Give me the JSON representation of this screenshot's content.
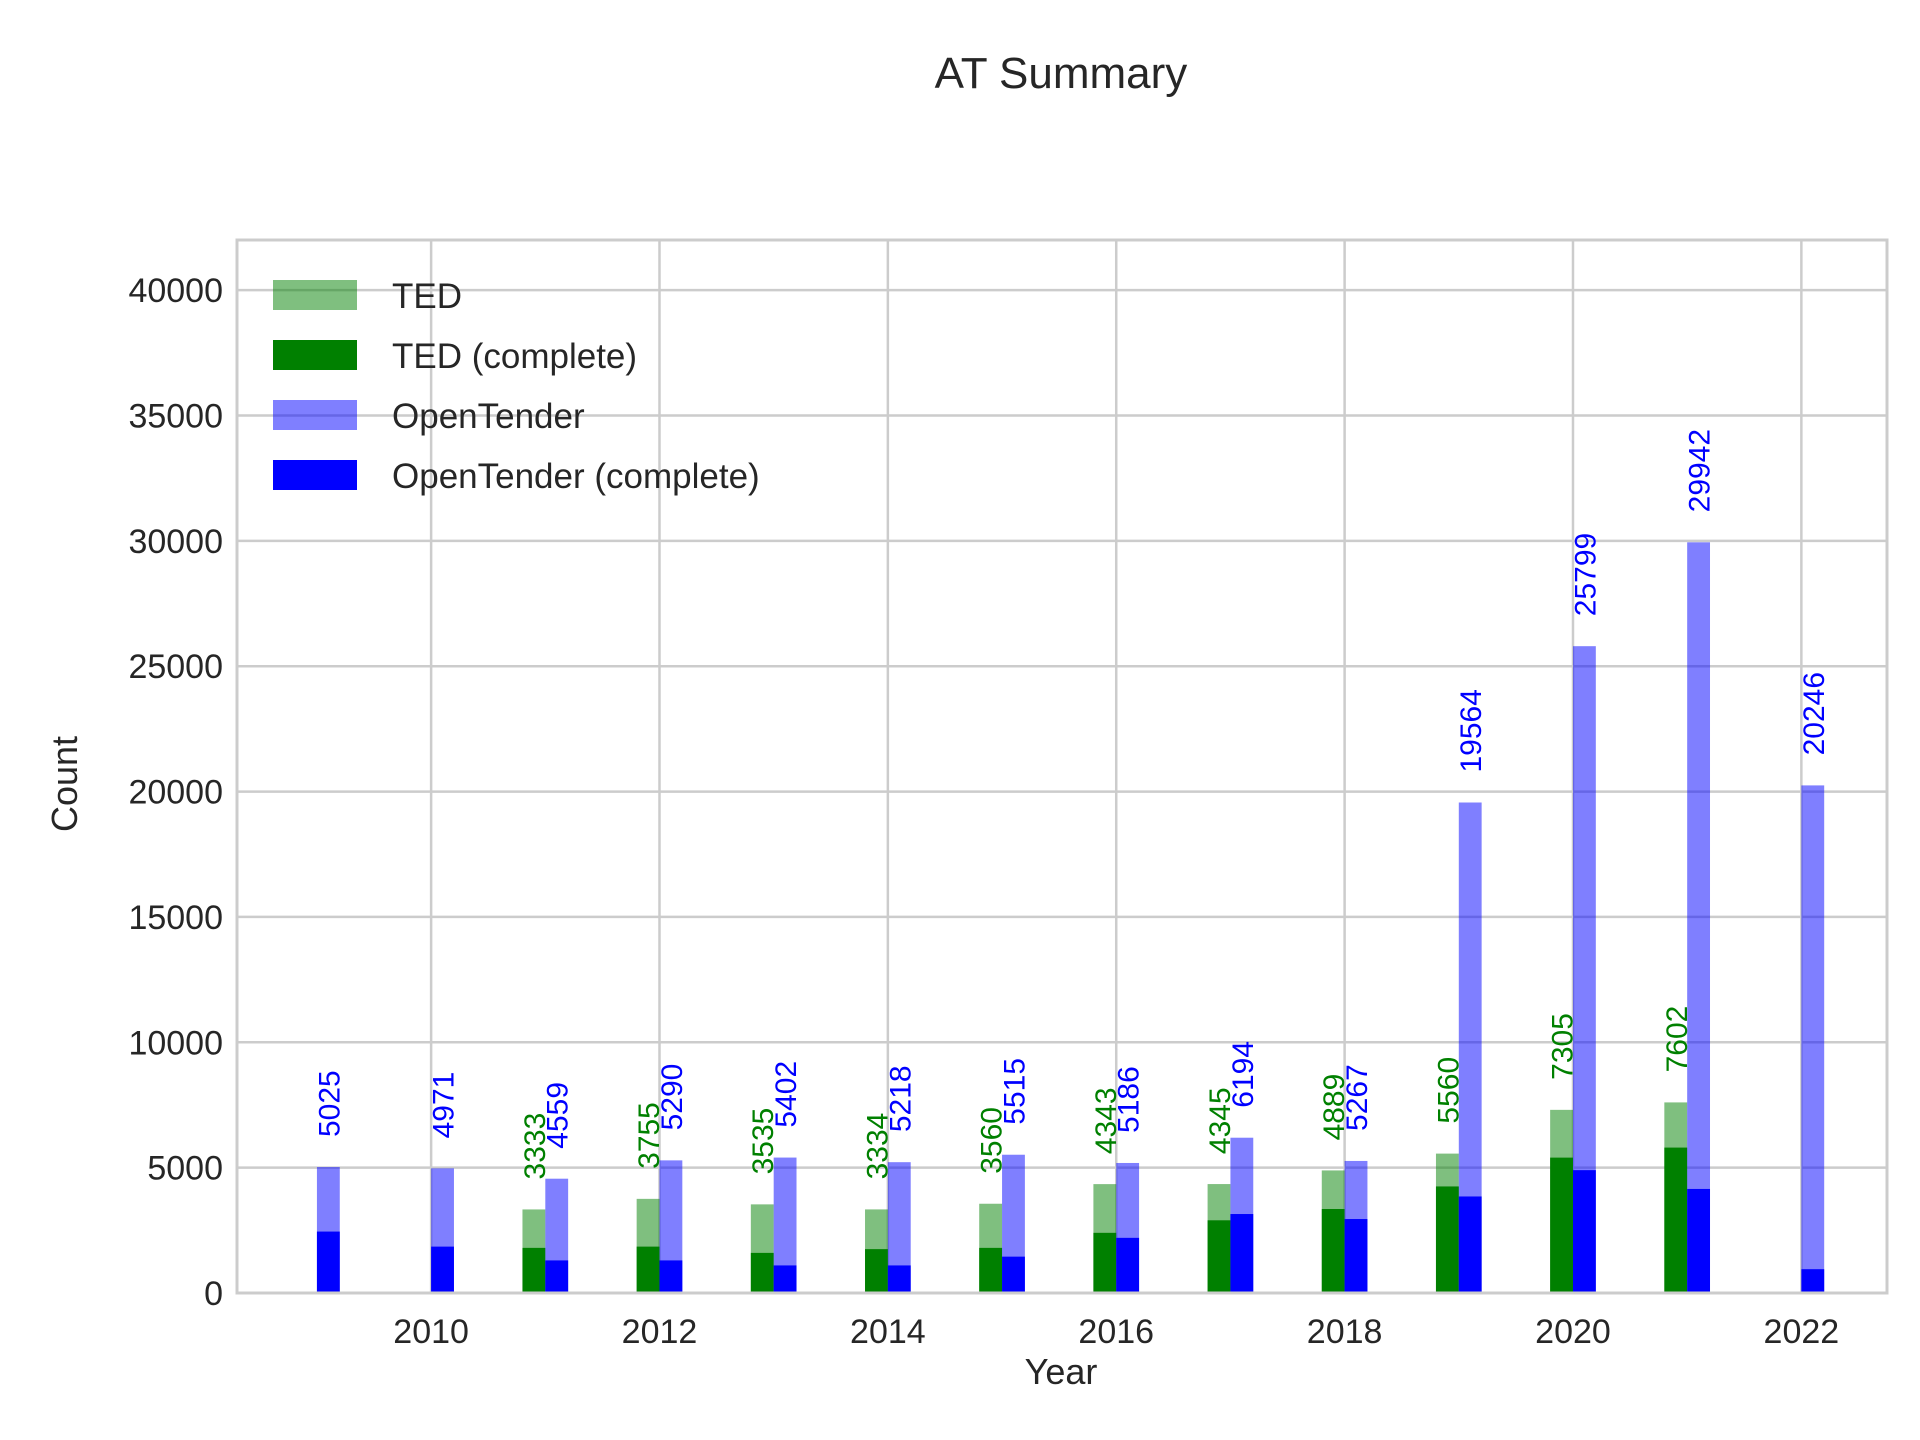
{
  "chart_data": {
    "type": "bar",
    "title": "AT Summary",
    "xlabel": "Year",
    "ylabel": "Count",
    "xlim": [
      2008.3,
      2022.75
    ],
    "ylim": [
      0,
      42000
    ],
    "xticks": [
      2010,
      2012,
      2014,
      2016,
      2018,
      2020,
      2022
    ],
    "yticks": [
      0,
      5000,
      10000,
      15000,
      20000,
      25000,
      30000,
      35000,
      40000
    ],
    "grid": true,
    "legend_position": "top-left",
    "series": [
      {
        "name": "TED",
        "color": "#008000",
        "alpha": 0.5,
        "offset": "left",
        "x": [
          2011,
          2012,
          2013,
          2014,
          2015,
          2016,
          2017,
          2018,
          2019,
          2020,
          2021
        ],
        "values": [
          3333,
          3755,
          3535,
          3334,
          3560,
          4343,
          4345,
          4889,
          5560,
          7305,
          7602
        ],
        "labels": [
          "3333",
          "3755",
          "3535",
          "3334",
          "3560",
          "4343",
          "4345",
          "4889",
          "5560",
          "7305",
          "7602"
        ]
      },
      {
        "name": "TED (complete)",
        "color": "#008000",
        "alpha": 1.0,
        "offset": "left",
        "x": [
          2011,
          2012,
          2013,
          2014,
          2015,
          2016,
          2017,
          2018,
          2019,
          2020,
          2021
        ],
        "values": [
          1800,
          1850,
          1600,
          1750,
          1800,
          2400,
          2900,
          3350,
          4250,
          5400,
          5800
        ]
      },
      {
        "name": "OpenTender",
        "color": "#0000ff",
        "alpha": 0.5,
        "offset": "right",
        "x": [
          2009,
          2010,
          2011,
          2012,
          2013,
          2014,
          2015,
          2016,
          2017,
          2018,
          2019,
          2020,
          2021,
          2022
        ],
        "values": [
          5025,
          4971,
          4559,
          5290,
          5402,
          5218,
          5515,
          5186,
          6194,
          5267,
          19564,
          25799,
          29942,
          20246
        ],
        "labels": [
          "5025",
          "4971",
          "4559",
          "5290",
          "5402",
          "5218",
          "5515",
          "5186",
          "6194",
          "5267",
          "19564",
          "25799",
          "29942",
          "20246"
        ]
      },
      {
        "name": "OpenTender (complete)",
        "color": "#0000ff",
        "alpha": 1.0,
        "offset": "right",
        "x": [
          2009,
          2010,
          2011,
          2012,
          2013,
          2014,
          2015,
          2016,
          2017,
          2018,
          2019,
          2020,
          2021,
          2022
        ],
        "values": [
          2450,
          1850,
          1300,
          1300,
          1100,
          1100,
          1450,
          2200,
          3150,
          2950,
          3850,
          4900,
          4150,
          950
        ]
      }
    ]
  }
}
